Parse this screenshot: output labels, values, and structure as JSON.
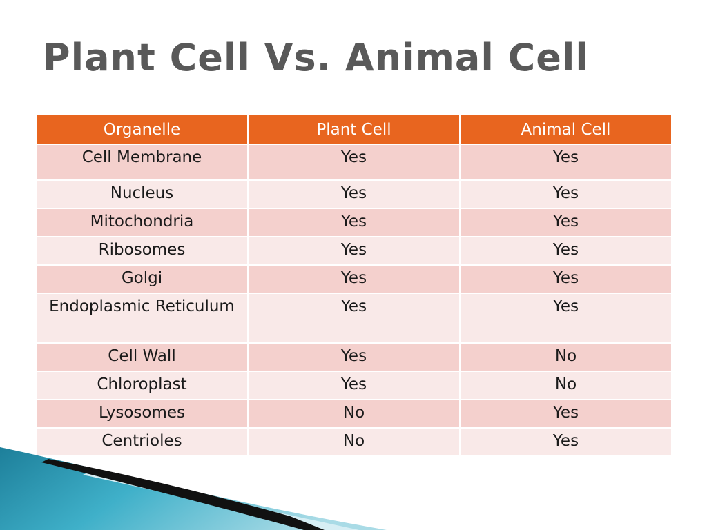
{
  "slide": {
    "title": "Plant Cell Vs. Animal Cell"
  },
  "table": {
    "headers": [
      "Organelle",
      "Plant Cell",
      "Animal Cell"
    ],
    "rows": [
      [
        "Cell Membrane",
        "Yes",
        "Yes"
      ],
      [
        "Nucleus",
        "Yes",
        "Yes"
      ],
      [
        "Mitochondria",
        "Yes",
        "Yes"
      ],
      [
        "Ribosomes",
        "Yes",
        "Yes"
      ],
      [
        "Golgi",
        "Yes",
        "Yes"
      ],
      [
        "Endoplasmic Reticulum",
        "Yes",
        "Yes"
      ],
      [
        "Cell Wall",
        "Yes",
        "No"
      ],
      [
        "Chloroplast",
        "Yes",
        "No"
      ],
      [
        "Lysosomes",
        "No",
        "Yes"
      ],
      [
        "Centrioles",
        "No",
        "Yes"
      ]
    ]
  },
  "colors": {
    "title_text": "#595959",
    "header_background": "#e8651f",
    "row_odd": "#f4d0cd",
    "row_even": "#f9e9e8",
    "decor_teal": "#2a8fa8",
    "decor_black": "#111111"
  }
}
